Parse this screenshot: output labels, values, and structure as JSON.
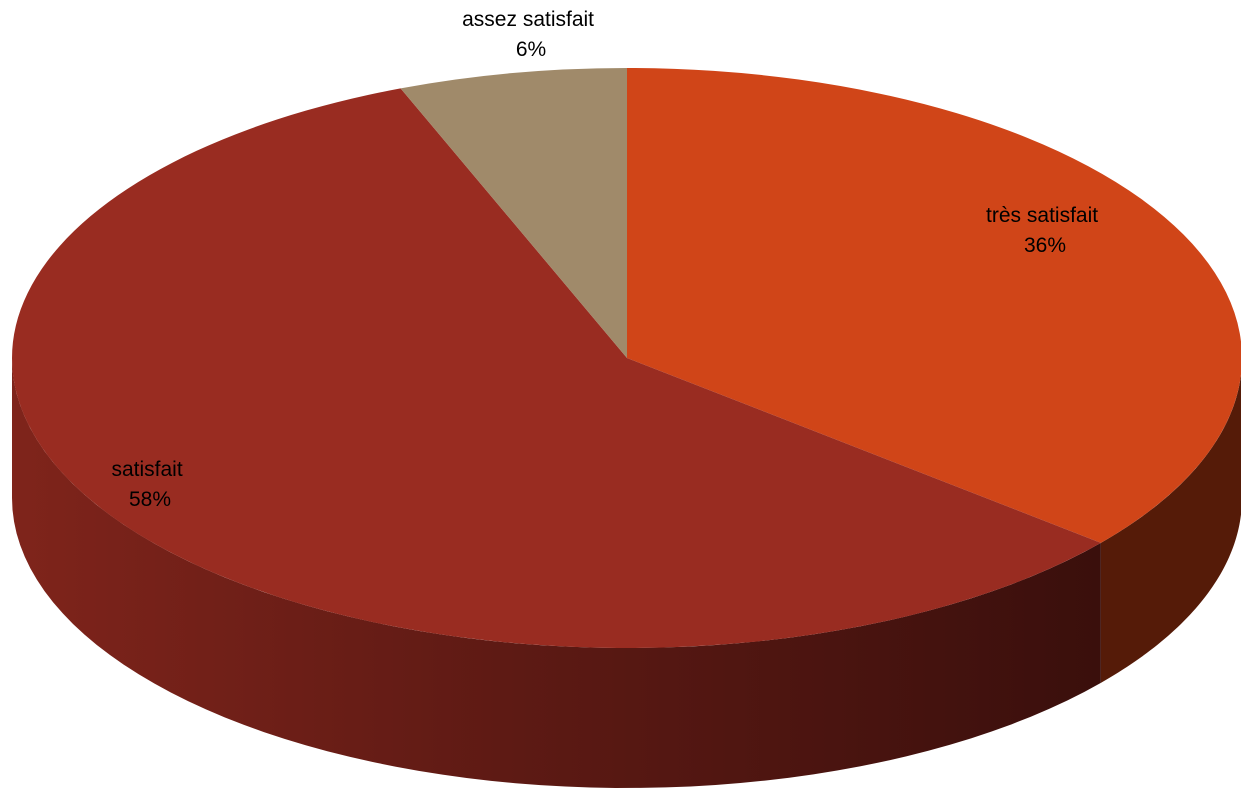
{
  "chart_data": {
    "type": "pie",
    "style": "3d",
    "title": "",
    "slices": [
      {
        "label": "très satisfait",
        "value": 36,
        "percent_label": "36%",
        "color": "#D04518",
        "side_color": "#551B08"
      },
      {
        "label": "satisfait",
        "value": 58,
        "percent_label": "58%",
        "color": "#992C21",
        "side_color": "#6A1E17"
      },
      {
        "label": "assez satisfait",
        "value": 6,
        "percent_label": "6%",
        "color": "#A08A6A",
        "side_color": "#6E5F49"
      }
    ],
    "legend": "none",
    "data_labels": "category and percentage"
  }
}
